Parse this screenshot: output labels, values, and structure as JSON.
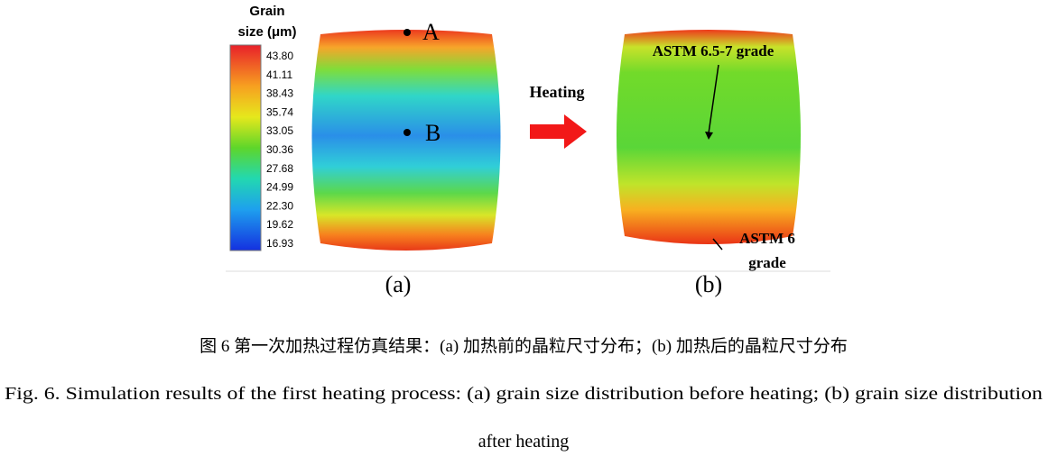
{
  "figure": {
    "colorbar": {
      "title_lines": [
        "Grain",
        "size (μm)"
      ],
      "labels": [
        "43.80",
        "41.11",
        "38.43",
        "35.74",
        "33.05",
        "30.36",
        "27.68",
        "24.99",
        "22.30",
        "19.62",
        "16.93"
      ]
    },
    "points": [
      "A",
      "B"
    ],
    "arrow_label": "Heating",
    "annotation_top": "ASTM 6.5-7 grade",
    "annotation_bottom_lines": [
      "ASTM 6",
      "grade"
    ],
    "panel_labels": [
      "(a)",
      "(b)"
    ]
  },
  "caption": {
    "zh": "图 6  第一次加热过程仿真结果：(a)  加热前的晶粒尺寸分布；(b)  加热后的晶粒尺寸分布",
    "en_lines": [
      "Fig. 6. Simulation results of the first heating process: (a) grain size distribution before heating; (b) grain size distribution",
      "after heating"
    ]
  }
}
